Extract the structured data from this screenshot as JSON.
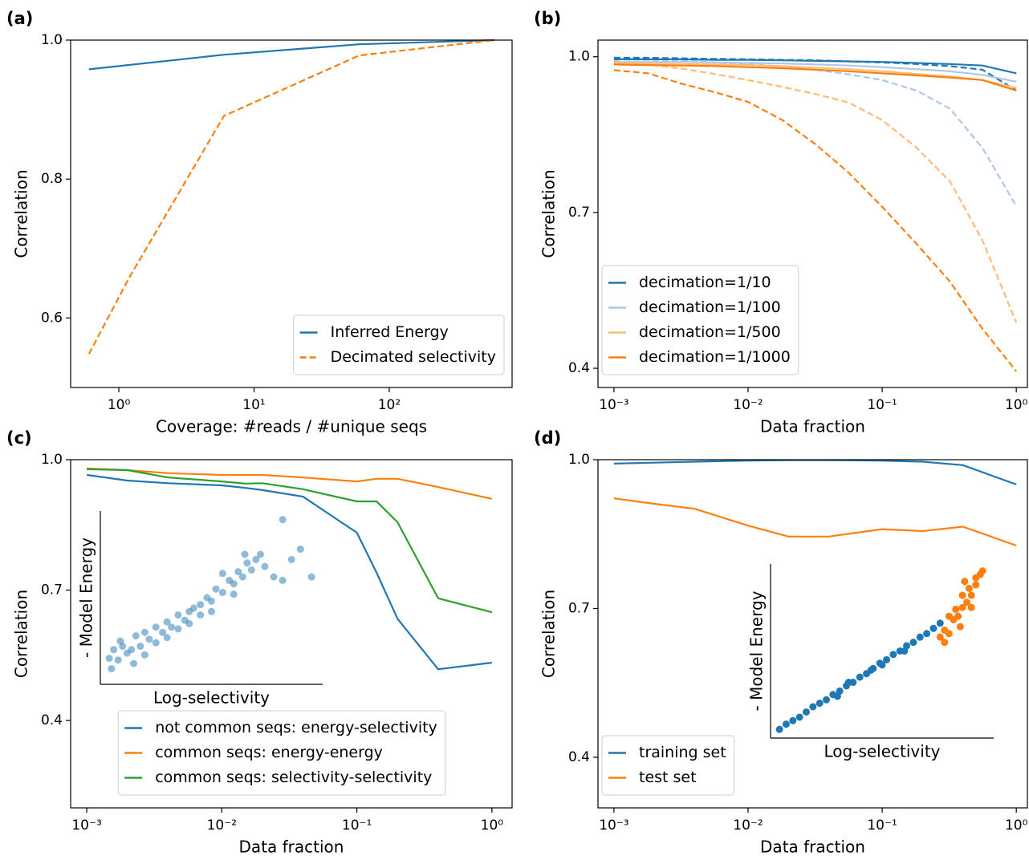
{
  "chart_data": [
    {
      "type": "line",
      "panel_label": "(a)",
      "xlabel": "Coverage: #reads / #unique seqs",
      "ylabel": "Correlation",
      "xscale": "log",
      "xlim": [
        0.44,
        810
      ],
      "ylim": [
        0.5,
        1.0
      ],
      "xticks": [
        {
          "value": 1,
          "label": "10⁰"
        },
        {
          "value": 10,
          "label": "10¹"
        },
        {
          "value": 100,
          "label": "10²"
        }
      ],
      "yticks": [
        {
          "value": 1,
          "label": "1.0"
        },
        0.8,
        0.6
      ],
      "legend": "lower right",
      "series": [
        {
          "name": "Inferred Energy",
          "color": "#1f77b4",
          "x": [
            0.6,
            6,
            60,
            600
          ],
          "values": [
            0.958,
            0.979,
            0.994,
            1.0
          ]
        },
        {
          "name": "Decimated selectivity",
          "color": "#ff7f0e",
          "dash": true,
          "x": [
            0.6,
            1.2,
            6,
            60,
            600
          ],
          "values": [
            0.548,
            0.659,
            0.891,
            0.978,
            1.0
          ]
        }
      ]
    },
    {
      "type": "line",
      "panel_label": "(b)",
      "xlabel": "Data fraction",
      "ylabel": "Correlation",
      "xscale": "log",
      "xlim": [
        0.00076,
        1.21
      ],
      "ylim": [
        0.363,
        1.032
      ],
      "xticks": [
        {
          "value": 0.001,
          "label": "10⁻³"
        },
        {
          "value": 0.01,
          "label": "10⁻²"
        },
        {
          "value": 0.1,
          "label": "10⁻¹"
        },
        {
          "value": 1,
          "label": "10⁰"
        }
      ],
      "yticks": [
        {
          "value": 1,
          "label": "1.0"
        },
        0.7,
        0.4
      ],
      "legend": "lower left",
      "x": [
        0.001,
        0.0018,
        0.0032,
        0.0056,
        0.01,
        0.018,
        0.032,
        0.056,
        0.1,
        0.18,
        0.32,
        0.56,
        1
      ],
      "series": [
        {
          "color": "#ff7f0e",
          "dash": true,
          "values": [
            0.974,
            0.968,
            0.948,
            0.932,
            0.913,
            0.878,
            0.831,
            0.777,
            0.711,
            0.64,
            0.567,
            0.476,
            0.394
          ]
        },
        {
          "color": "#ffbb78",
          "dash": true,
          "values": [
            0.992,
            0.985,
            0.977,
            0.967,
            0.955,
            0.942,
            0.928,
            0.912,
            0.878,
            0.825,
            0.76,
            0.646,
            0.488
          ]
        },
        {
          "color": "#aec7e8",
          "dash": true,
          "values": [
            0.995,
            0.994,
            0.992,
            0.989,
            0.986,
            0.981,
            0.975,
            0.966,
            0.955,
            0.935,
            0.9,
            0.824,
            0.712
          ]
        },
        {
          "color": "#1f77b4",
          "dash": true,
          "values": [
            0.998,
            0.998,
            0.997,
            0.996,
            0.995,
            0.994,
            0.993,
            0.991,
            0.989,
            0.986,
            0.982,
            0.975,
            0.935
          ]
        },
        {
          "name": "decimation=1/10",
          "color": "#1f77b4",
          "values": [
            0.995,
            0.995,
            0.995,
            0.994,
            0.994,
            0.993,
            0.992,
            0.991,
            0.99,
            0.988,
            0.986,
            0.983,
            0.968
          ]
        },
        {
          "name": "decimation=1/100",
          "color": "#aec7e8",
          "values": [
            0.99,
            0.99,
            0.99,
            0.989,
            0.988,
            0.987,
            0.985,
            0.983,
            0.98,
            0.976,
            0.972,
            0.965,
            0.952
          ]
        },
        {
          "name": "decimation=1/500",
          "color": "#ffbb78",
          "values": [
            0.988,
            0.987,
            0.986,
            0.985,
            0.984,
            0.982,
            0.979,
            0.976,
            0.972,
            0.967,
            0.962,
            0.955,
            0.94
          ]
        },
        {
          "name": "decimation=1/1000",
          "color": "#ff7f0e",
          "values": [
            0.985,
            0.984,
            0.983,
            0.982,
            0.98,
            0.978,
            0.975,
            0.972,
            0.968,
            0.964,
            0.96,
            0.955,
            0.935
          ]
        }
      ]
    },
    {
      "type": "line",
      "panel_label": "(c)",
      "xlabel": "Data fraction",
      "ylabel": "Correlation",
      "xscale": "log",
      "xlim": [
        0.00076,
        1.41
      ],
      "ylim": [
        0.199,
        1.0
      ],
      "xticks": [
        {
          "value": 0.001,
          "label": "10⁻³"
        },
        {
          "value": 0.01,
          "label": "10⁻²"
        },
        {
          "value": 0.1,
          "label": "10⁻¹"
        },
        {
          "value": 1,
          "label": "10⁰"
        }
      ],
      "yticks": [
        {
          "value": 1,
          "label": "1.0"
        },
        0.7,
        0.4
      ],
      "legend": "lower center",
      "x": [
        0.001,
        0.002,
        0.004,
        0.01,
        0.015,
        0.02,
        0.04,
        0.1,
        0.14,
        0.2,
        0.4,
        1
      ],
      "series": [
        {
          "name": "not common seqs: energy-selectivity",
          "color": "#1f77b4",
          "values": [
            0.965,
            0.952,
            0.946,
            0.941,
            0.935,
            0.93,
            0.915,
            0.832,
            0.74,
            0.634,
            0.518,
            0.533
          ]
        },
        {
          "name": "common seqs: energy-energy",
          "color": "#ff7f0e",
          "values": [
            0.98,
            0.976,
            0.969,
            0.965,
            0.965,
            0.965,
            0.959,
            0.95,
            0.956,
            0.956,
            0.937,
            0.91
          ]
        },
        {
          "name": "common seqs: selectivity-selectivity",
          "color": "#2ca02c",
          "values": [
            0.978,
            0.976,
            0.959,
            0.95,
            0.945,
            0.946,
            0.932,
            0.904,
            0.904,
            0.856,
            0.681,
            0.649
          ]
        }
      ],
      "inset": {
        "type": "scatter",
        "xlabel": "Log-selectivity",
        "ylabel": "- Model Energy",
        "xlim": [
          0,
          1
        ],
        "ylim": [
          0,
          1
        ],
        "alpha": 0.5,
        "series": [
          {
            "color": "#1f77b4",
            "x": [
              0.04,
              0.06,
              0.08,
              0.1,
              0.12,
              0.05,
              0.09,
              0.14,
              0.16,
              0.18,
              0.2,
              0.22,
              0.25,
              0.28,
              0.3,
              0.32,
              0.35,
              0.38,
              0.4,
              0.42,
              0.45,
              0.48,
              0.5,
              0.52,
              0.55,
              0.58,
              0.6,
              0.62,
              0.64,
              0.66,
              0.68,
              0.7,
              0.72,
              0.15,
              0.2,
              0.3,
              0.4,
              0.5,
              0.6,
              0.74,
              0.78,
              0.82,
              0.86,
              0.9,
              0.95,
              0.55,
              0.65,
              0.45,
              0.35,
              0.25,
              0.82
            ],
            "values": [
              0.15,
              0.2,
              0.14,
              0.22,
              0.18,
              0.09,
              0.25,
              0.2,
              0.28,
              0.22,
              0.3,
              0.26,
              0.33,
              0.3,
              0.36,
              0.33,
              0.4,
              0.37,
              0.42,
              0.44,
              0.46,
              0.5,
              0.48,
              0.55,
              0.53,
              0.6,
              0.58,
              0.65,
              0.62,
              0.7,
              0.66,
              0.72,
              0.75,
              0.12,
              0.17,
              0.27,
              0.35,
              0.42,
              0.52,
              0.68,
              0.62,
              0.6,
              0.72,
              0.78,
              0.62,
              0.64,
              0.75,
              0.4,
              0.32,
              0.24,
              0.95
            ]
          }
        ]
      }
    },
    {
      "type": "line",
      "panel_label": "(d)",
      "xlabel": "Data fraction",
      "ylabel": "Correlation",
      "xscale": "log",
      "xlim": [
        0.00076,
        1.21
      ],
      "ylim": [
        0.298,
        1.0
      ],
      "xticks": [
        {
          "value": 0.001,
          "label": "10⁻³"
        },
        {
          "value": 0.01,
          "label": "10⁻²"
        },
        {
          "value": 0.1,
          "label": "10⁻¹"
        },
        {
          "value": 1,
          "label": "10⁰"
        }
      ],
      "yticks": [
        {
          "value": 1,
          "label": "1.0"
        },
        0.7,
        0.4
      ],
      "legend": "lower left",
      "x": [
        0.001,
        0.002,
        0.004,
        0.01,
        0.02,
        0.04,
        0.1,
        0.2,
        0.4,
        1
      ],
      "series": [
        {
          "name": "training set",
          "color": "#1f77b4",
          "values": [
            0.992,
            0.994,
            0.996,
            0.998,
            0.999,
            0.999,
            0.998,
            0.996,
            0.989,
            0.95
          ]
        },
        {
          "name": "test set",
          "color": "#ff7f0e",
          "values": [
            0.922,
            0.911,
            0.901,
            0.867,
            0.845,
            0.845,
            0.86,
            0.856,
            0.865,
            0.827
          ]
        }
      ],
      "inset": {
        "type": "scatter",
        "xlabel": "Log-selectivity",
        "ylabel": "- Model Energy",
        "xlim": [
          0,
          1
        ],
        "ylim": [
          0,
          1
        ],
        "alpha": 1,
        "series": [
          {
            "color": "#1f77b4",
            "x": [
              0.04,
              0.07,
              0.1,
              0.13,
              0.16,
              0.19,
              0.22,
              0.25,
              0.28,
              0.31,
              0.34,
              0.37,
              0.4,
              0.43,
              0.46,
              0.49,
              0.52,
              0.55,
              0.58,
              0.61,
              0.64,
              0.67,
              0.7,
              0.73,
              0.76,
              0.3,
              0.45,
              0.6,
              0.35,
              0.5
            ],
            "values": [
              0.05,
              0.08,
              0.1,
              0.12,
              0.15,
              0.18,
              0.2,
              0.22,
              0.25,
              0.27,
              0.3,
              0.32,
              0.35,
              0.37,
              0.4,
              0.43,
              0.45,
              0.48,
              0.5,
              0.53,
              0.55,
              0.58,
              0.6,
              0.63,
              0.66,
              0.24,
              0.39,
              0.5,
              0.32,
              0.42
            ]
          },
          {
            "color": "#ff7f0e",
            "x": [
              0.76,
              0.78,
              0.8,
              0.82,
              0.84,
              0.86,
              0.88,
              0.9,
              0.92,
              0.94,
              0.8,
              0.83,
              0.86,
              0.89,
              0.92,
              0.78,
              0.85,
              0.9,
              0.95,
              0.87
            ],
            "values": [
              0.58,
              0.62,
              0.6,
              0.68,
              0.7,
              0.75,
              0.78,
              0.82,
              0.88,
              0.94,
              0.7,
              0.74,
              0.82,
              0.86,
              0.92,
              0.55,
              0.64,
              0.75,
              0.96,
              0.9
            ]
          }
        ]
      }
    }
  ]
}
